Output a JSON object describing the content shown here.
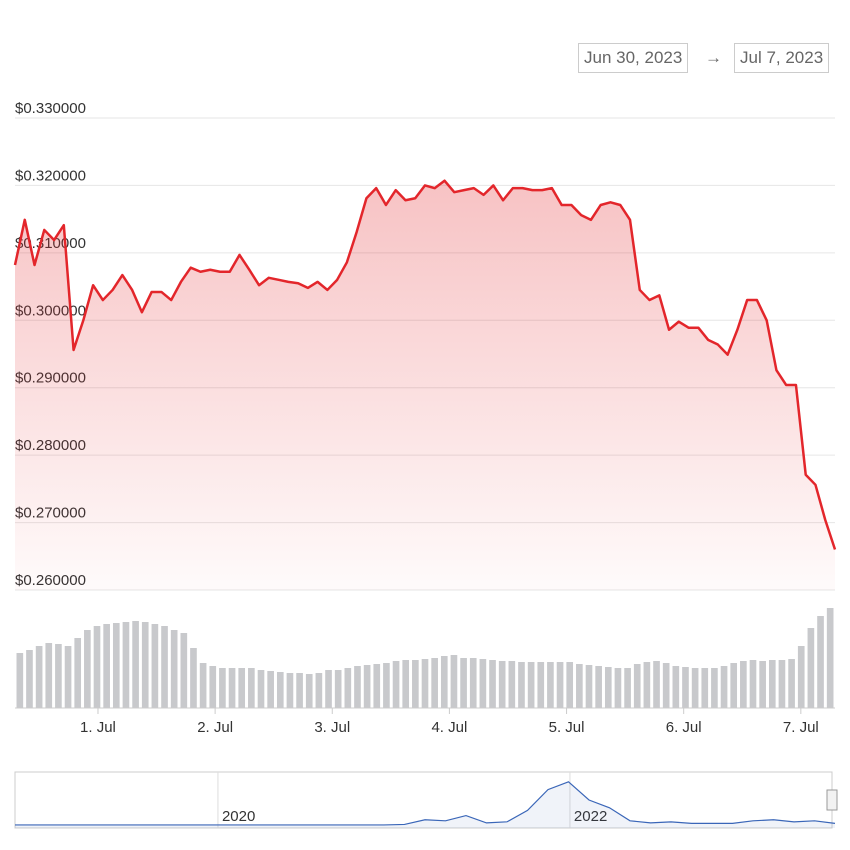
{
  "range_from": "Jun 30, 2023",
  "range_arrow": "→",
  "range_to": "Jul 7, 2023",
  "chart_data": {
    "type": "line",
    "color": "#e3262b",
    "area": true,
    "grid": true,
    "xlim": [
      0,
      84
    ],
    "xticks": [
      {
        "value": 8.5,
        "label": "1. Jul"
      },
      {
        "value": 20.5,
        "label": "2. Jul"
      },
      {
        "value": 32.5,
        "label": "3. Jul"
      },
      {
        "value": 44.5,
        "label": "4. Jul"
      },
      {
        "value": 56.5,
        "label": "5. Jul"
      },
      {
        "value": 68.5,
        "label": "6. Jul"
      },
      {
        "value": 80.5,
        "label": "7. Jul"
      }
    ],
    "ylim": [
      0.26,
      0.33
    ],
    "yticks": [
      {
        "value": 0.26,
        "label": "$0.260000"
      },
      {
        "value": 0.27,
        "label": "$0.270000"
      },
      {
        "value": 0.28,
        "label": "$0.280000"
      },
      {
        "value": 0.29,
        "label": "$0.290000"
      },
      {
        "value": 0.3,
        "label": "$0.300000"
      },
      {
        "value": 0.31,
        "label": "$0.310000"
      },
      {
        "value": 0.32,
        "label": "$0.320000"
      },
      {
        "value": 0.33,
        "label": "$0.330000"
      }
    ],
    "values": [
      0.3082,
      0.3149,
      0.3082,
      0.3134,
      0.3119,
      0.3141,
      0.2956,
      0.3,
      0.3052,
      0.303,
      0.3045,
      0.3067,
      0.3045,
      0.3012,
      0.3042,
      0.3042,
      0.303,
      0.3057,
      0.3078,
      0.3072,
      0.3075,
      0.3072,
      0.3072,
      0.3097,
      0.3075,
      0.3052,
      0.3063,
      0.306,
      0.3057,
      0.3055,
      0.3048,
      0.3057,
      0.3045,
      0.306,
      0.3086,
      0.3131,
      0.3181,
      0.3196,
      0.3171,
      0.3193,
      0.3178,
      0.3181,
      0.32,
      0.3196,
      0.3207,
      0.319,
      0.3193,
      0.3196,
      0.3186,
      0.32,
      0.3178,
      0.3196,
      0.3196,
      0.3193,
      0.3193,
      0.3196,
      0.3171,
      0.3171,
      0.3156,
      0.3149,
      0.3171,
      0.3175,
      0.3171,
      0.3149,
      0.3045,
      0.303,
      0.3037,
      0.2986,
      0.2998,
      0.2989,
      0.2989,
      0.2971,
      0.2964,
      0.2949,
      0.2986,
      0.303,
      0.303,
      0.3,
      0.2926,
      0.2904,
      0.2904,
      0.2771,
      0.2756,
      0.2704,
      0.266
    ],
    "volume_color": "#c8c9cc",
    "volume_lim": [
      0,
      105
    ],
    "volume": [
      55,
      58,
      62,
      65,
      64,
      62,
      70,
      78,
      82,
      84,
      85,
      86,
      87,
      86,
      84,
      82,
      78,
      75,
      60,
      45,
      42,
      40,
      40,
      40,
      40,
      38,
      37,
      36,
      35,
      35,
      34,
      35,
      38,
      38,
      40,
      42,
      43,
      44,
      45,
      47,
      48,
      48,
      49,
      50,
      52,
      53,
      50,
      50,
      49,
      48,
      47,
      47,
      46,
      46,
      46,
      46,
      46,
      46,
      44,
      43,
      42,
      41,
      40,
      40,
      44,
      46,
      47,
      45,
      42,
      41,
      40,
      40,
      40,
      42,
      45,
      47,
      48,
      47,
      48,
      48,
      49,
      62,
      80,
      92,
      100
    ],
    "navigator": {
      "color": "#3a66b8",
      "xlim": [
        0,
        40
      ],
      "ylim": [
        0,
        1
      ],
      "xticks": [
        {
          "value": 9.9,
          "label": "2020"
        },
        {
          "value": 27.07,
          "label": "2022"
        }
      ],
      "values": [
        0.02,
        0.02,
        0.02,
        0.02,
        0.02,
        0.02,
        0.02,
        0.02,
        0.02,
        0.02,
        0.02,
        0.02,
        0.02,
        0.02,
        0.02,
        0.02,
        0.02,
        0.02,
        0.02,
        0.03,
        0.12,
        0.1,
        0.2,
        0.06,
        0.08,
        0.3,
        0.7,
        0.85,
        0.5,
        0.35,
        0.1,
        0.06,
        0.08,
        0.05,
        0.05,
        0.05,
        0.1,
        0.12,
        0.08,
        0.1,
        0.05
      ]
    }
  }
}
